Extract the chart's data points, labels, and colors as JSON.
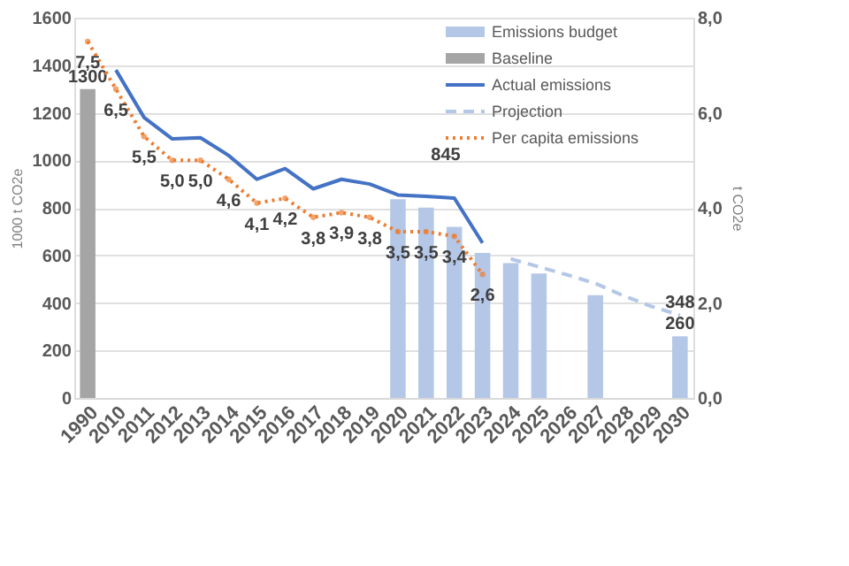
{
  "chart_data": {
    "type": "bar",
    "categories": [
      "1990",
      "2010",
      "2011",
      "2012",
      "2013",
      "2014",
      "2015",
      "2016",
      "2017",
      "2018",
      "2019",
      "2020",
      "2021",
      "2022",
      "2023",
      "2024",
      "2025",
      "2026",
      "2027",
      "2028",
      "2029",
      "2030"
    ],
    "ylabel": "1000 t CO2e",
    "y2label": "t CO2e",
    "ylim": [
      0,
      1600
    ],
    "yticks": [
      0,
      200,
      400,
      600,
      800,
      1000,
      1200,
      1400,
      1600
    ],
    "y2lim": [
      0,
      8
    ],
    "y2ticks": [
      {
        "value": 0,
        "label": "0,0"
      },
      {
        "value": 2,
        "label": "2,0"
      },
      {
        "value": 4,
        "label": "4,0"
      },
      {
        "value": 6,
        "label": "6,0"
      },
      {
        "value": 8,
        "label": "8,0"
      }
    ],
    "grid": "y",
    "legend": "top right",
    "annotations": [
      "845"
    ],
    "series": [
      {
        "name": "Emissions budget",
        "color": "#b4c7e7",
        "values": [
          null,
          null,
          null,
          null,
          null,
          null,
          null,
          null,
          null,
          null,
          null,
          836,
          801,
          720,
          610,
          567,
          524,
          null,
          433,
          null,
          null,
          260
        ],
        "value_labels": [
          null,
          null,
          null,
          null,
          null,
          null,
          null,
          null,
          null,
          null,
          null,
          null,
          null,
          null,
          null,
          null,
          null,
          null,
          null,
          null,
          null,
          "260"
        ]
      },
      {
        "name": "Baseline",
        "color": "#a5a5a5",
        "values": [
          1300,
          null,
          null,
          null,
          null,
          null,
          null,
          null,
          null,
          null,
          null,
          null,
          null,
          null,
          null,
          null,
          null,
          null,
          null,
          null,
          null,
          null
        ],
        "value_labels": [
          "1300",
          null,
          null,
          null,
          null,
          null,
          null,
          null,
          null,
          null,
          null,
          null,
          null,
          null,
          null,
          null,
          null,
          null,
          null,
          null,
          null,
          null
        ]
      },
      {
        "name": "Actual emissions",
        "type": "line",
        "color": "#4472c4",
        "line_style": "solid",
        "values": [
          null,
          1380,
          1180,
          1090,
          1095,
          1020,
          920,
          965,
          880,
          920,
          900,
          854,
          848,
          841,
          652,
          null,
          null,
          null,
          null,
          null,
          null,
          null
        ]
      },
      {
        "name": "Projection",
        "type": "line",
        "color": "#b4c7e7",
        "line_style": "dashed",
        "values": [
          null,
          null,
          null,
          null,
          null,
          null,
          null,
          null,
          null,
          null,
          null,
          null,
          null,
          null,
          null,
          585,
          552,
          518,
          482,
          430,
          385,
          348
        ],
        "value_labels": [
          null,
          null,
          null,
          null,
          null,
          null,
          null,
          null,
          null,
          null,
          null,
          null,
          null,
          null,
          null,
          null,
          null,
          null,
          null,
          null,
          null,
          "348"
        ]
      },
      {
        "name": "Per capita emissions",
        "type": "line",
        "axis": "y2",
        "color": "#ed7d31",
        "line_style": "dotted",
        "marker": "circle",
        "values": [
          7.5,
          6.5,
          5.5,
          5.0,
          5.0,
          4.6,
          4.1,
          4.2,
          3.8,
          3.9,
          3.8,
          3.5,
          3.5,
          3.4,
          2.6,
          null,
          null,
          null,
          null,
          null,
          null,
          null
        ],
        "value_labels": [
          "7,5",
          "6,5",
          "5,5",
          "5,0",
          "5,0",
          "4,6",
          "4,1",
          "4,2",
          "3,8",
          "3,9",
          "3,8",
          "3,5",
          "3,5",
          "3,4",
          "2,6",
          null,
          null,
          null,
          null,
          null,
          null,
          null
        ]
      }
    ]
  }
}
